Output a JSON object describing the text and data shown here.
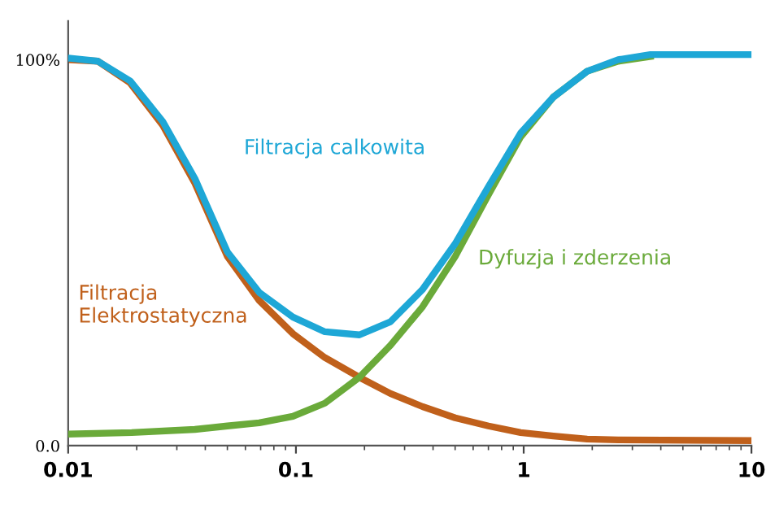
{
  "chart_data": {
    "type": "line",
    "log": "x",
    "xlim": [
      0.01,
      10
    ],
    "xticks": [
      0.01,
      0.1,
      1,
      10
    ],
    "ylim": [
      0,
      110
    ],
    "yticks": [
      {
        "value": 0,
        "label": "0.0"
      },
      {
        "value": 100,
        "label": "100%"
      }
    ],
    "grid": false,
    "legend": false,
    "marker": "none",
    "line_style": "solid",
    "series": [
      {
        "name": "Filtracja\nElektrostatyczna",
        "color": "#c0601b",
        "x": [
          0.01,
          0.0135,
          0.0187,
          0.026,
          0.036,
          0.05,
          0.069,
          0.097,
          0.134,
          0.19,
          0.26,
          0.36,
          0.5,
          0.7,
          0.97,
          1.35,
          1.9,
          2.6,
          10
        ],
        "values": [
          100,
          99.6,
          94,
          83,
          68,
          49,
          37.6,
          29,
          22.8,
          17.7,
          13.5,
          10.1,
          7.2,
          5.1,
          3.4,
          2.5,
          1.7,
          1.5,
          1.3
        ]
      },
      {
        "name": "Dyfuzja i zderzenia",
        "color": "#6aaa3a",
        "x": [
          0.01,
          0.019,
          0.036,
          0.05,
          0.069,
          0.097,
          0.134,
          0.19,
          0.26,
          0.36,
          0.5,
          0.7,
          0.97,
          1.35,
          1.9,
          2.6,
          3.6
        ],
        "values": [
          3,
          3.4,
          4.2,
          5.1,
          5.9,
          7.6,
          11,
          17.7,
          26,
          36,
          49,
          65,
          80,
          90.3,
          97,
          99.6,
          100.8
        ]
      },
      {
        "name": "Filtracja calkowita",
        "color": "#1ea7d6",
        "x": [
          0.01,
          0.0135,
          0.0187,
          0.026,
          0.036,
          0.05,
          0.069,
          0.097,
          0.134,
          0.19,
          0.26,
          0.36,
          0.5,
          0.7,
          0.97,
          1.35,
          1.9,
          2.6,
          3.6,
          10
        ],
        "values": [
          100.4,
          99.6,
          94.5,
          84,
          69.2,
          50.2,
          39.7,
          33.3,
          29.5,
          28.7,
          32.1,
          40.5,
          52.3,
          67.1,
          81,
          90.3,
          97,
          100,
          101.3,
          101.3
        ]
      }
    ]
  }
}
